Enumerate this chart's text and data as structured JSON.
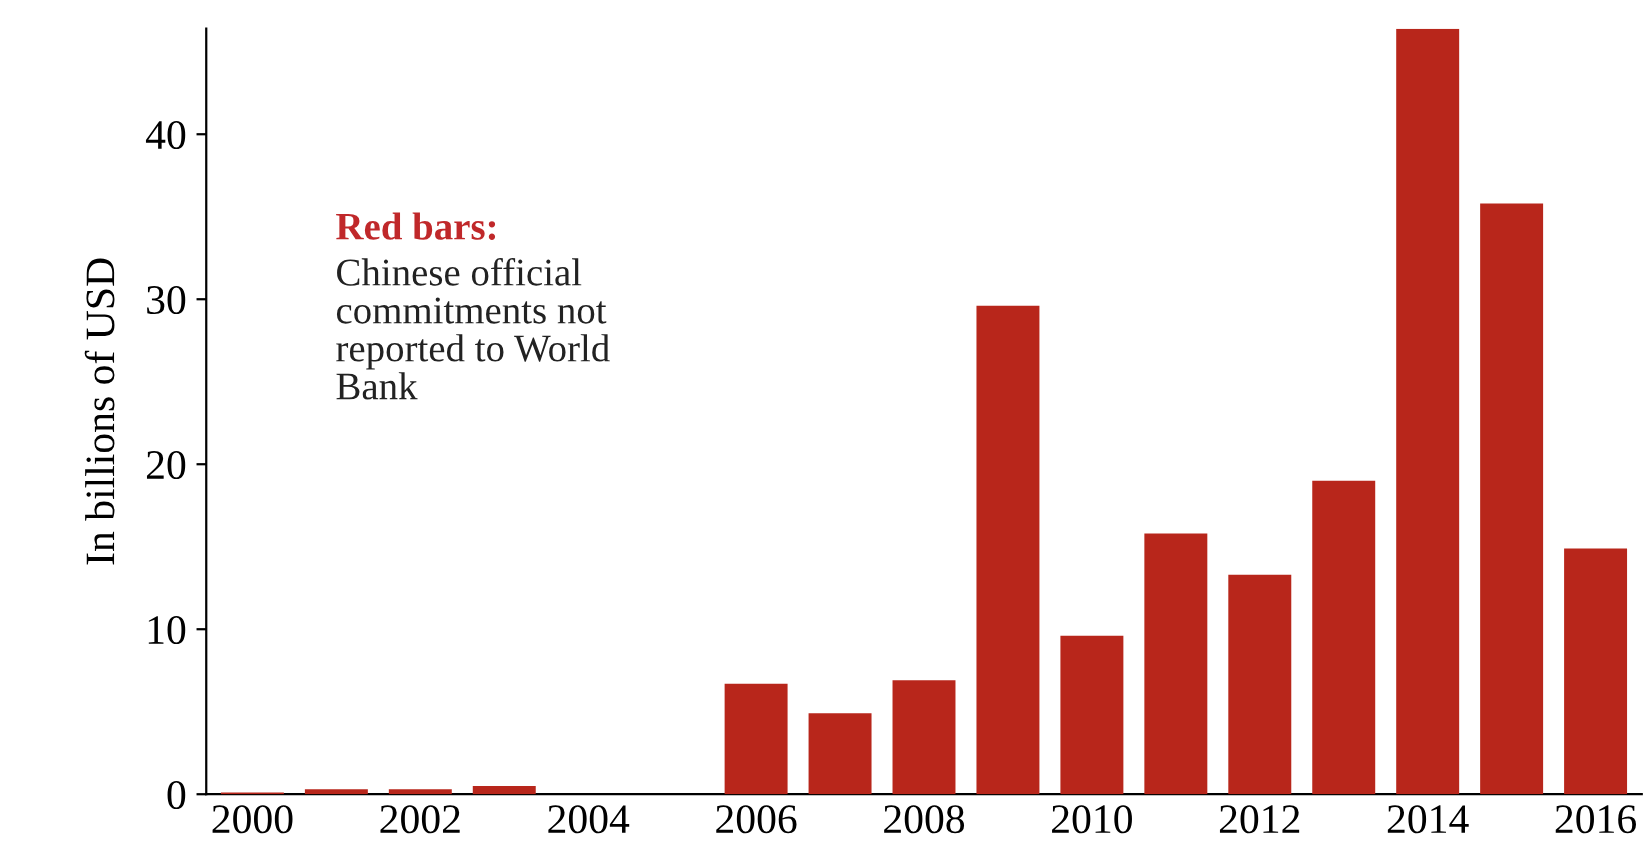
{
  "chart_data": {
    "type": "bar",
    "ylabel": "In billions of USD",
    "categories": [
      "2000",
      null,
      "2002",
      null,
      "2004",
      null,
      "2006",
      null,
      "2008",
      null,
      "2010",
      null,
      "2012",
      null,
      "2014",
      null,
      "2016"
    ],
    "values": [
      0.1,
      0.3,
      0.3,
      0.5,
      0,
      0,
      6.7,
      4.9,
      6.9,
      29.6,
      9.6,
      15.8,
      13.3,
      19.0,
      46.4,
      35.8,
      14.9
    ],
    "color": "#b8261b",
    "ylim": [
      0,
      46.4
    ],
    "yticks": [
      0,
      10,
      20,
      30,
      40
    ],
    "grid": false,
    "annotations": [
      "Red bars:",
      "Chinese official\ncommitments not\nreported to World\nBank"
    ]
  }
}
